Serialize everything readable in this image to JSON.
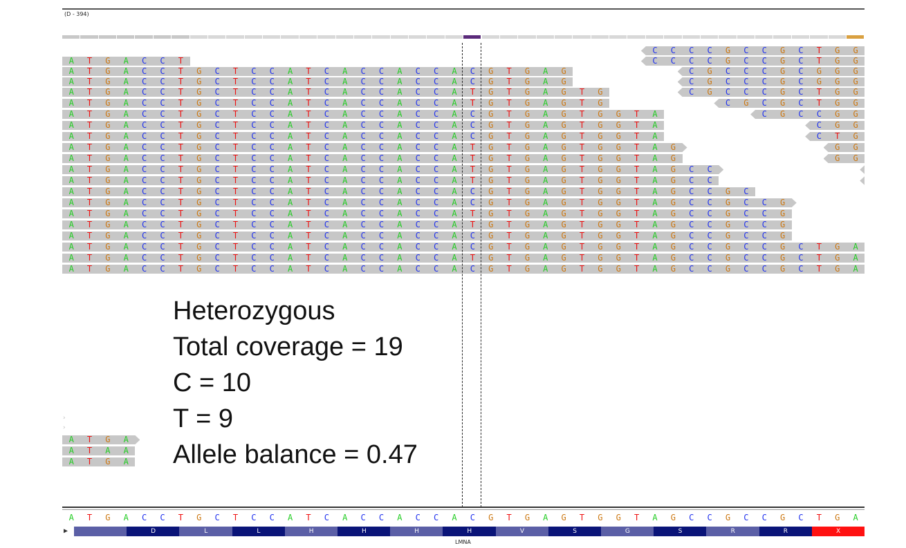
{
  "region_label": "(D - 394)",
  "colors": {
    "A": "#22cc22",
    "C": "#2233ee",
    "G": "#cc7711",
    "T": "#ee1111",
    "read_fill": "#c7c7c7",
    "aa_dark": "#0a1478",
    "aa_light": "#5b5fa6",
    "aa_stop": "#ff1111"
  },
  "reference": {
    "sequence": "ATGACCTGCTCCATCACCACCACGTGAGTGGTAGCCGCCGCTGA",
    "amino_acids": [
      "",
      "D",
      "L",
      "L",
      "H",
      "H",
      "H",
      "H",
      "V",
      "S",
      "G",
      "S",
      "R",
      "R",
      "X"
    ],
    "gene": "LMNA",
    "strand": "▶"
  },
  "reads": [
    {
      "seq": "CCCCGCCGCTGG",
      "start": 32,
      "dir": "rev"
    },
    {
      "seq": "ATGACCT",
      "start": 0,
      "dir": "none"
    },
    {
      "seq": "CCCCGCCGCTGG",
      "start": 32,
      "dir": "rev"
    },
    {
      "seq": "ATGACCTGCTCCATCACCACCACGTGAG",
      "start": 0,
      "dir": "none"
    },
    {
      "seq": "CGCCCGCGGG",
      "start": 34,
      "dir": "rev"
    },
    {
      "seq": "ATGACCTGCTCCATCACCACCACGTGAG",
      "start": 0,
      "dir": "none"
    },
    {
      "seq": "CGCCCGCGGG",
      "start": 34,
      "dir": "rev"
    },
    {
      "seq": "ATGACCTGCTCCATCACCACCATGTGAGTG",
      "start": 0,
      "dir": "none"
    },
    {
      "seq": "CGCCCGCTGG",
      "start": 34,
      "dir": "rev"
    },
    {
      "seq": "ATGACCTGCTCCATCACCACCATGTGAGTG",
      "start": 0,
      "dir": "none"
    },
    {
      "seq": "CGCGCTGG",
      "start": 36,
      "dir": "rev"
    },
    {
      "seq": "ATGACCTGCTCCATCACCACCACGTGAGTGGTA",
      "start": 0,
      "dir": "none"
    },
    {
      "seq": "CGCCGGA",
      "start": 38,
      "dir": "rev"
    },
    {
      "seq": "ATGACCTGCTCCATCACCACCACGTGAGTGGTA",
      "start": 0,
      "dir": "none"
    },
    {
      "seq": "CGGG",
      "start": 41,
      "dir": "rev"
    },
    {
      "seq": "ATGACCTGCTCCATCACCACCACGTGAGTGGTA",
      "start": 0,
      "dir": "none"
    },
    {
      "seq": "CTGA",
      "start": 41,
      "dir": "rev"
    },
    {
      "seq": "ATGACCTGCTCCATCACCACCATGTGAGTGGTAG",
      "start": 0,
      "dir": "fwd"
    },
    {
      "seq": "GGA",
      "start": 42,
      "dir": "rev"
    },
    {
      "seq": "ATGACCTGCTCCATCACCACCATGTGAGTGGTAG",
      "start": 0,
      "dir": "none"
    },
    {
      "seq": "GGG",
      "start": 42,
      "dir": "rev"
    },
    {
      "seq": "ATGACCTGCTCCATCACCACCATGTGAGTGGTAGCC",
      "start": 0,
      "dir": "fwd"
    },
    {
      "seq": "G",
      "start": 44,
      "dir": "rev"
    },
    {
      "seq": "ATGACCTGCTCCATCACCACCATGTGAGTGGTAGCC",
      "start": 0,
      "dir": "none"
    },
    {
      "seq": "G",
      "start": 44,
      "dir": "rev"
    },
    {
      "seq": "ATGACCTGCTCCATCACCACCACGTGAGTGGTAGCCGC",
      "start": 0,
      "dir": "none"
    },
    {
      "seq": "ATGACCTGCTCCATCACCACCACGTGAGTGGTAGCCGCCG",
      "start": 0,
      "dir": "fwd"
    },
    {
      "seq": "ATGACCTGCTCCATCACCACCATGTGAGTGGTAGCCGCCG",
      "start": 0,
      "dir": "none"
    },
    {
      "seq": "ATGACCTGCTCCATCACCACCATGTGAGTGGTAGCCGCCG",
      "start": 0,
      "dir": "none"
    },
    {
      "seq": "ATGACCTGCTCCATCACCACCACGTGAGTGGTAGCCGCCG",
      "start": 0,
      "dir": "none"
    },
    {
      "seq": "ATGACCTGCTCCATCACCACCACGTGAGTGGTAGCCGCCGCTGA",
      "start": 0,
      "dir": "none"
    },
    {
      "seq": "ATGACCTGCTCCATCACCACCATGTGAGTGGTAGCCGCCGCTGA",
      "start": 0,
      "dir": "none"
    },
    {
      "seq": "ATGACCTGCTCCATCACCACCACGTGAGTGGTAGCCGCCGCTGA",
      "start": 0,
      "dir": "none"
    },
    {
      "seq": "ATGA",
      "start": 0,
      "dir": "fwd"
    },
    {
      "seq": "ATAA",
      "start": 0,
      "dir": "none"
    },
    {
      "seq": "ATGA",
      "start": 0,
      "dir": "none"
    }
  ],
  "annotation": {
    "line1": "Heterozygous",
    "line2": "Total coverage = 19",
    "line3": "C = 10",
    "line4": "T = 9",
    "line5": "Allele balance = 0.47"
  }
}
